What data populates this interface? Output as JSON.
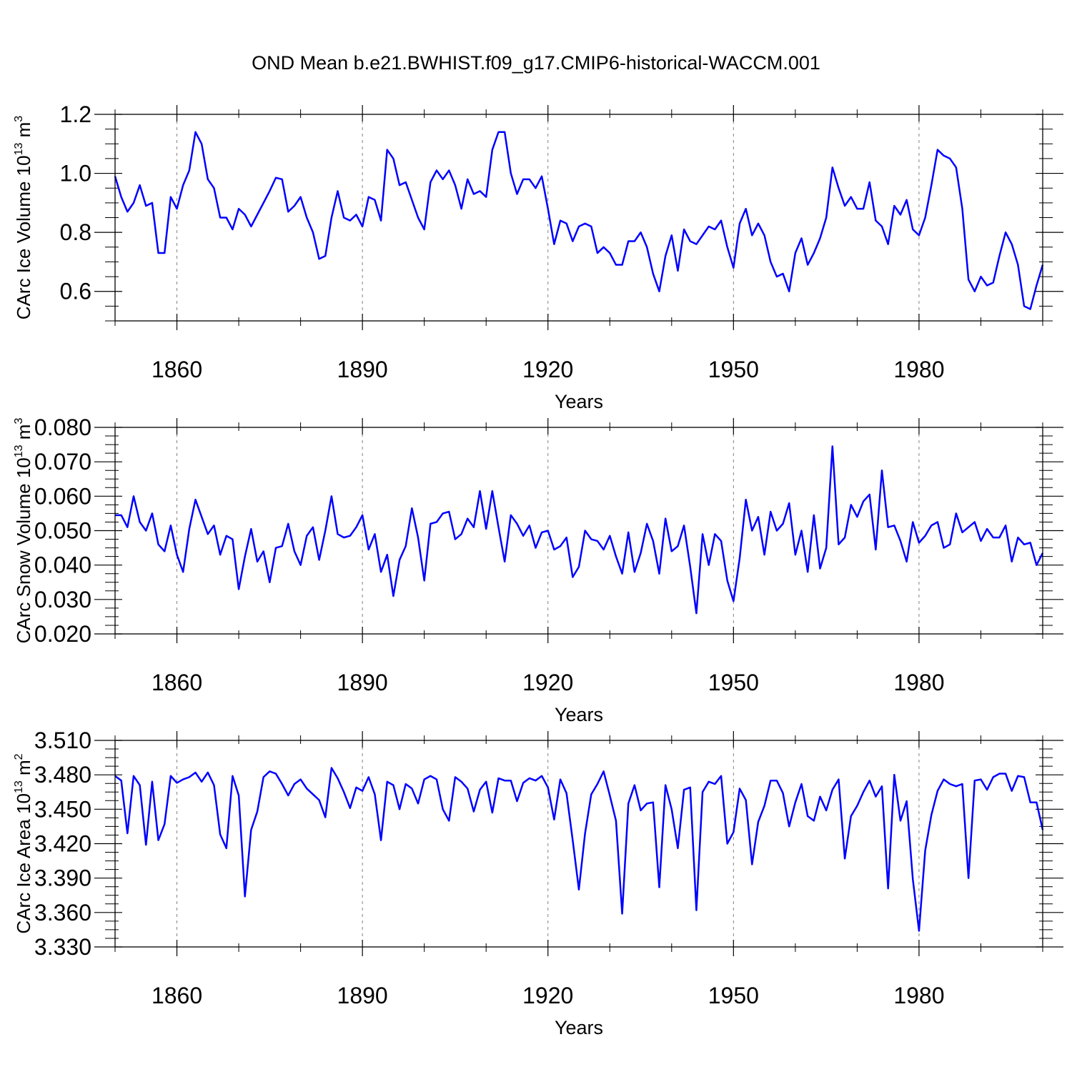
{
  "figure": {
    "title": "OND Mean b.e21.BWHIST.f09_g17.CMIP6-historical-WACCM.001",
    "line_color": "#0000ff",
    "grid_color": "#808080"
  },
  "chart_data": [
    {
      "type": "line",
      "ylabel_main": "CArc Ice Volume 10",
      "ylabel_exp": "13",
      "ylabel_unit": " m",
      "ylabel_unit_exp": "3",
      "xlabel": "Years",
      "xlim": [
        1850,
        2000
      ],
      "ylim": [
        0.5,
        1.2
      ],
      "yticks": [
        0.6,
        0.8,
        1.0,
        1.2
      ],
      "ytick_labels": [
        "0.6",
        "0.8",
        "1.0",
        "1.2"
      ],
      "yminor": [
        0.5,
        0.55,
        0.65,
        0.7,
        0.75,
        0.85,
        0.9,
        0.95,
        1.05,
        1.1,
        1.15
      ],
      "xticks": [
        1860,
        1890,
        1920,
        1950,
        1980
      ],
      "xtick_labels": [
        "1860",
        "1890",
        "1920",
        "1950",
        "1980"
      ],
      "x_start": 1850,
      "values": [
        0.99,
        0.92,
        0.87,
        0.9,
        0.96,
        0.89,
        0.9,
        0.73,
        0.73,
        0.92,
        0.88,
        0.96,
        1.01,
        1.14,
        1.1,
        0.98,
        0.95,
        0.85,
        0.85,
        0.81,
        0.88,
        0.86,
        0.82,
        0.86,
        0.9,
        0.94,
        0.985,
        0.98,
        0.87,
        0.89,
        0.92,
        0.85,
        0.8,
        0.71,
        0.72,
        0.85,
        0.94,
        0.85,
        0.84,
        0.86,
        0.82,
        0.92,
        0.91,
        0.84,
        1.08,
        1.05,
        0.96,
        0.97,
        0.91,
        0.85,
        0.81,
        0.97,
        1.01,
        0.98,
        1.01,
        0.96,
        0.88,
        0.98,
        0.93,
        0.94,
        0.92,
        1.08,
        1.14,
        1.14,
        1.0,
        0.93,
        0.98,
        0.98,
        0.95,
        0.99,
        0.88,
        0.76,
        0.84,
        0.83,
        0.77,
        0.82,
        0.83,
        0.82,
        0.73,
        0.75,
        0.73,
        0.69,
        0.69,
        0.77,
        0.77,
        0.8,
        0.75,
        0.66,
        0.6,
        0.72,
        0.79,
        0.67,
        0.81,
        0.77,
        0.76,
        0.79,
        0.82,
        0.81,
        0.84,
        0.75,
        0.68,
        0.83,
        0.88,
        0.79,
        0.83,
        0.79,
        0.7,
        0.65,
        0.66,
        0.6,
        0.73,
        0.78,
        0.69,
        0.73,
        0.78,
        0.85,
        1.02,
        0.95,
        0.89,
        0.92,
        0.88,
        0.88,
        0.97,
        0.84,
        0.82,
        0.76,
        0.89,
        0.86,
        0.91,
        0.81,
        0.79,
        0.85,
        0.96,
        1.08,
        1.06,
        1.05,
        1.02,
        0.88,
        0.64,
        0.6,
        0.65,
        0.62,
        0.63,
        0.72,
        0.8,
        0.76,
        0.69,
        0.55,
        0.54,
        0.62,
        0.69
      ]
    },
    {
      "type": "line",
      "ylabel_main": "CArc Snow Volume 10",
      "ylabel_exp": "13",
      "ylabel_unit": " m",
      "ylabel_unit_exp": "3",
      "xlabel": "Years",
      "xlim": [
        1850,
        2000
      ],
      "ylim": [
        0.02,
        0.08
      ],
      "yticks": [
        0.02,
        0.03,
        0.04,
        0.05,
        0.06,
        0.07,
        0.08
      ],
      "ytick_labels": [
        "0.020",
        "0.030",
        "0.040",
        "0.050",
        "0.060",
        "0.070",
        "0.080"
      ],
      "yminor": [
        0.0225,
        0.025,
        0.0275,
        0.0325,
        0.035,
        0.0375,
        0.0425,
        0.045,
        0.0475,
        0.0525,
        0.055,
        0.0575,
        0.0625,
        0.065,
        0.0675,
        0.0725,
        0.075,
        0.0775
      ],
      "xticks": [
        1860,
        1890,
        1920,
        1950,
        1980
      ],
      "xtick_labels": [
        "1860",
        "1890",
        "1920",
        "1950",
        "1980"
      ],
      "x_start": 1850,
      "values": [
        0.0545,
        0.0545,
        0.051,
        0.06,
        0.0525,
        0.05,
        0.055,
        0.046,
        0.044,
        0.0515,
        0.043,
        0.038,
        0.0505,
        0.059,
        0.054,
        0.049,
        0.0515,
        0.043,
        0.0485,
        0.0475,
        0.033,
        0.0425,
        0.0505,
        0.041,
        0.044,
        0.035,
        0.045,
        0.0455,
        0.052,
        0.044,
        0.04,
        0.0485,
        0.051,
        0.0415,
        0.05,
        0.06,
        0.049,
        0.048,
        0.0485,
        0.051,
        0.0545,
        0.0445,
        0.049,
        0.038,
        0.043,
        0.031,
        0.0415,
        0.0455,
        0.0565,
        0.048,
        0.0355,
        0.052,
        0.0525,
        0.055,
        0.0555,
        0.0475,
        0.049,
        0.0535,
        0.051,
        0.0615,
        0.0505,
        0.0615,
        0.051,
        0.041,
        0.0545,
        0.052,
        0.0485,
        0.0515,
        0.045,
        0.0495,
        0.05,
        0.0445,
        0.0455,
        0.048,
        0.0365,
        0.0395,
        0.05,
        0.0475,
        0.047,
        0.0445,
        0.0485,
        0.0425,
        0.0375,
        0.0495,
        0.038,
        0.0435,
        0.052,
        0.047,
        0.0375,
        0.0535,
        0.044,
        0.0455,
        0.0515,
        0.0395,
        0.026,
        0.049,
        0.04,
        0.049,
        0.047,
        0.0355,
        0.0295,
        0.042,
        0.059,
        0.05,
        0.054,
        0.043,
        0.0555,
        0.05,
        0.052,
        0.058,
        0.043,
        0.05,
        0.038,
        0.0545,
        0.039,
        0.045,
        0.0745,
        0.046,
        0.048,
        0.0575,
        0.054,
        0.0585,
        0.0605,
        0.0445,
        0.0675,
        0.051,
        0.0515,
        0.047,
        0.041,
        0.0525,
        0.0465,
        0.0485,
        0.0515,
        0.0525,
        0.045,
        0.046,
        0.055,
        0.0495,
        0.051,
        0.0525,
        0.047,
        0.0505,
        0.048,
        0.048,
        0.0515,
        0.041,
        0.048,
        0.046,
        0.0465,
        0.04,
        0.0435
      ]
    },
    {
      "type": "line",
      "ylabel_main": "CArc Ice Area 10",
      "ylabel_exp": "13",
      "ylabel_unit": " m",
      "ylabel_unit_exp": "2",
      "xlabel": "Years",
      "xlim": [
        1850,
        2000
      ],
      "ylim": [
        3.33,
        3.51
      ],
      "yticks": [
        3.33,
        3.36,
        3.39,
        3.42,
        3.45,
        3.48,
        3.51
      ],
      "ytick_labels": [
        "3.330",
        "3.360",
        "3.390",
        "3.420",
        "3.450",
        "3.480",
        "3.510"
      ],
      "yminor": [
        3.3375,
        3.345,
        3.3525,
        3.3675,
        3.375,
        3.3825,
        3.3975,
        3.405,
        3.4125,
        3.4275,
        3.435,
        3.4425,
        3.4575,
        3.465,
        3.4725,
        3.4875,
        3.495,
        3.5025
      ],
      "xticks": [
        1860,
        1890,
        1920,
        1950,
        1980
      ],
      "xtick_labels": [
        "1860",
        "1890",
        "1920",
        "1950",
        "1980"
      ],
      "x_start": 1850,
      "values": [
        3.479,
        3.475,
        3.429,
        3.479,
        3.471,
        3.419,
        3.474,
        3.423,
        3.437,
        3.479,
        3.473,
        3.476,
        3.478,
        3.482,
        3.474,
        3.482,
        3.471,
        3.428,
        3.416,
        3.479,
        3.462,
        3.374,
        3.432,
        3.448,
        3.478,
        3.483,
        3.481,
        3.472,
        3.462,
        3.472,
        3.476,
        3.468,
        3.463,
        3.458,
        3.443,
        3.486,
        3.477,
        3.465,
        3.451,
        3.469,
        3.466,
        3.478,
        3.463,
        3.423,
        3.474,
        3.471,
        3.45,
        3.472,
        3.468,
        3.455,
        3.476,
        3.479,
        3.476,
        3.45,
        3.44,
        3.478,
        3.474,
        3.468,
        3.448,
        3.467,
        3.474,
        3.447,
        3.477,
        3.475,
        3.475,
        3.457,
        3.473,
        3.477,
        3.475,
        3.479,
        3.469,
        3.441,
        3.476,
        3.464,
        3.423,
        3.38,
        3.429,
        3.463,
        3.472,
        3.483,
        3.462,
        3.44,
        3.359,
        3.455,
        3.471,
        3.449,
        3.455,
        3.456,
        3.382,
        3.471,
        3.45,
        3.416,
        3.467,
        3.469,
        3.362,
        3.465,
        3.474,
        3.472,
        3.479,
        3.42,
        3.43,
        3.468,
        3.458,
        3.402,
        3.439,
        3.453,
        3.475,
        3.475,
        3.464,
        3.435,
        3.456,
        3.472,
        3.444,
        3.44,
        3.461,
        3.449,
        3.467,
        3.476,
        3.407,
        3.444,
        3.453,
        3.465,
        3.475,
        3.461,
        3.47,
        3.381,
        3.48,
        3.44,
        3.457,
        3.389,
        3.344,
        3.414,
        3.445,
        3.466,
        3.476,
        3.472,
        3.47,
        3.472,
        3.39,
        3.475,
        3.476,
        3.467,
        3.478,
        3.481,
        3.481,
        3.466,
        3.479,
        3.478,
        3.456,
        3.456,
        3.432
      ]
    }
  ]
}
